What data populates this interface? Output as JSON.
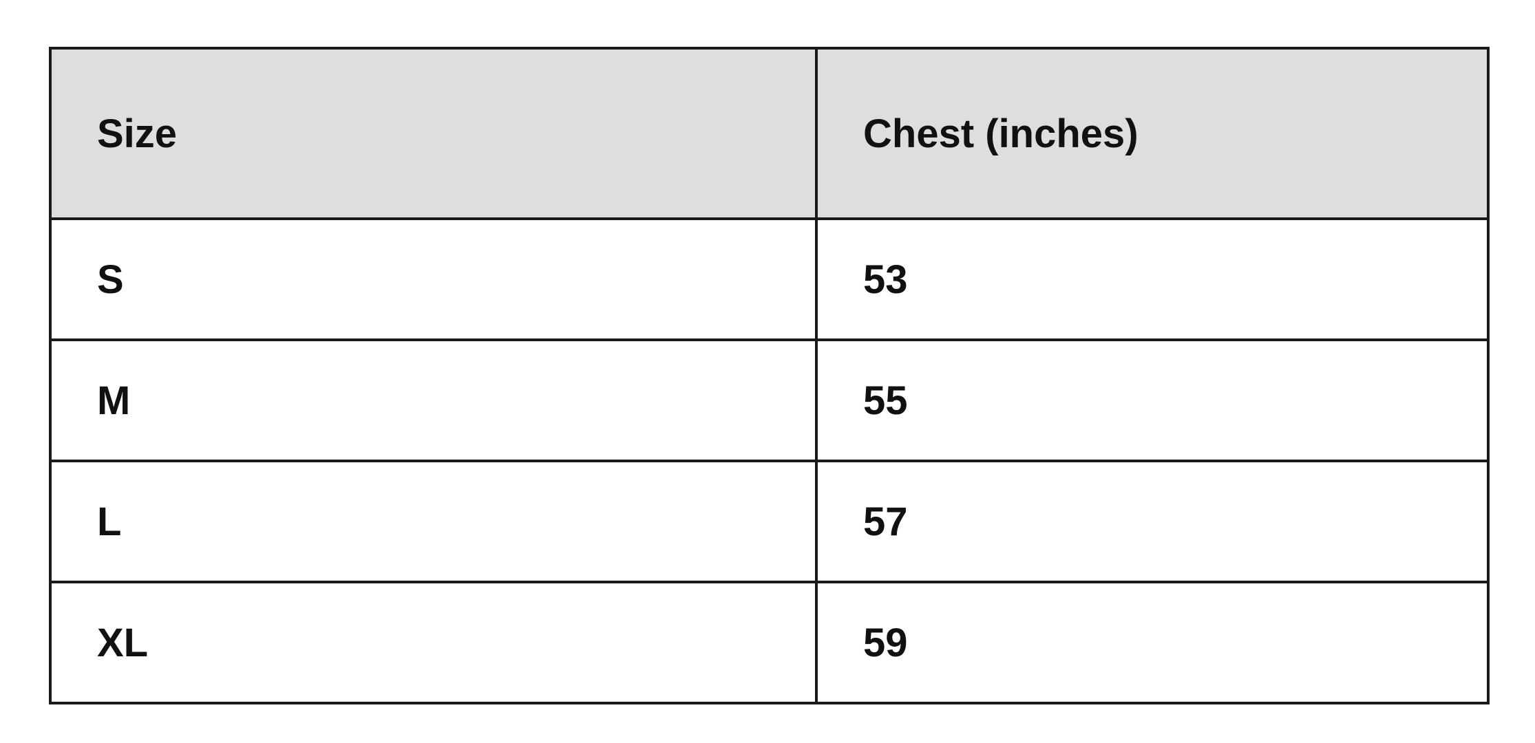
{
  "table": {
    "headers": [
      "Size",
      "Chest (inches)"
    ],
    "rows": [
      [
        "S",
        "53"
      ],
      [
        "M",
        "55"
      ],
      [
        "L",
        "57"
      ],
      [
        "XL",
        "59"
      ]
    ],
    "header_background": "#dedede",
    "border_color": "#1a1a1a"
  }
}
